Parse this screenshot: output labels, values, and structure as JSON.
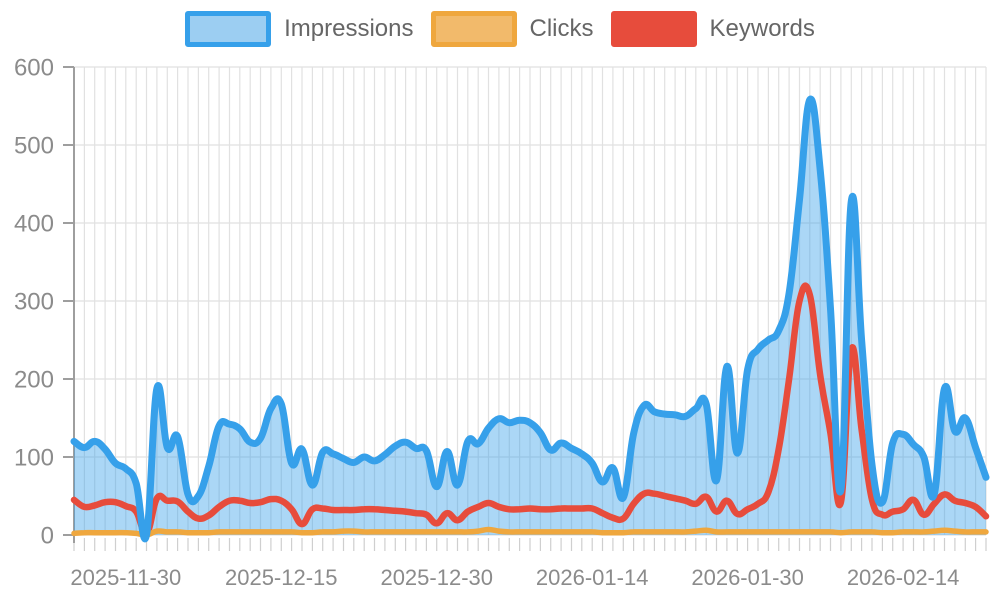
{
  "legend": {
    "items": [
      {
        "label": "Impressions",
        "fill": "#9CCEF2",
        "border": "#36A0EA"
      },
      {
        "label": "Clicks",
        "fill": "#F2BA6B",
        "border": "#EFA73E"
      },
      {
        "label": "Keywords",
        "fill": "#E74C3C",
        "border": "#E74C3C"
      }
    ]
  },
  "chart_data": {
    "type": "area",
    "title": "",
    "xlabel": "",
    "ylabel": "",
    "ylim": [
      0,
      600
    ],
    "y_ticks": [
      0,
      100,
      200,
      300,
      400,
      500,
      600
    ],
    "grid": true,
    "legend_position": "top",
    "n_points": 89,
    "x_tick_indices": [
      5,
      20,
      35,
      50,
      65,
      80
    ],
    "x_tick_labels": [
      "2025-11-30",
      "2025-12-15",
      "2025-12-30",
      "2026-01-14",
      "2026-01-30",
      "2026-02-14"
    ],
    "series": [
      {
        "name": "Impressions",
        "style": "area",
        "line_color": "#36A0EA",
        "fill_color": "rgba(54,160,234,0.42)",
        "line_width": 7,
        "values": [
          120,
          112,
          120,
          110,
          92,
          85,
          66,
          0,
          188,
          112,
          126,
          52,
          50,
          88,
          140,
          142,
          136,
          119,
          124,
          162,
          168,
          92,
          110,
          64,
          106,
          104,
          98,
          93,
          100,
          95,
          103,
          114,
          119,
          111,
          108,
          62,
          107,
          64,
          120,
          117,
          137,
          149,
          144,
          147,
          144,
          131,
          109,
          118,
          111,
          104,
          92,
          68,
          86,
          48,
          130,
          166,
          158,
          155,
          154,
          152,
          162,
          168,
          70,
          216,
          105,
          212,
          238,
          250,
          262,
          310,
          430,
          558,
          468,
          290,
          58,
          428,
          250,
          90,
          42,
          118,
          129,
          116,
          100,
          52,
          188,
          133,
          150,
          112,
          74
        ]
      },
      {
        "name": "Clicks",
        "style": "line",
        "line_color": "#EFA73E",
        "line_width": 5.5,
        "values": [
          2,
          3,
          3,
          3,
          3,
          3,
          2,
          0,
          5,
          4,
          4,
          3,
          3,
          3,
          4,
          4,
          4,
          4,
          4,
          4,
          4,
          4,
          3,
          3,
          4,
          4,
          5,
          5,
          4,
          4,
          4,
          4,
          4,
          4,
          4,
          4,
          4,
          4,
          4,
          5,
          7,
          5,
          4,
          4,
          4,
          4,
          4,
          4,
          4,
          4,
          4,
          3,
          3,
          3,
          4,
          4,
          4,
          4,
          4,
          4,
          5,
          6,
          4,
          4,
          4,
          4,
          4,
          4,
          4,
          4,
          4,
          4,
          4,
          4,
          3,
          4,
          4,
          4,
          3,
          3,
          4,
          4,
          4,
          5,
          6,
          5,
          4,
          4,
          4
        ]
      },
      {
        "name": "Keywords",
        "style": "line",
        "line_color": "#E74C3C",
        "line_width": 6.5,
        "values": [
          45,
          36,
          38,
          42,
          42,
          37,
          30,
          2,
          47,
          44,
          43,
          30,
          21,
          25,
          36,
          44,
          44,
          41,
          42,
          46,
          44,
          33,
          14,
          33,
          34,
          32,
          32,
          32,
          33,
          33,
          32,
          31,
          30,
          28,
          26,
          15,
          28,
          19,
          30,
          36,
          41,
          36,
          33,
          33,
          34,
          33,
          33,
          34,
          34,
          34,
          34,
          28,
          22,
          21,
          40,
          53,
          53,
          50,
          47,
          44,
          40,
          49,
          30,
          44,
          27,
          33,
          40,
          55,
          110,
          200,
          300,
          308,
          205,
          130,
          42,
          238,
          135,
          45,
          26,
          30,
          33,
          45,
          26,
          40,
          52,
          44,
          41,
          36,
          24
        ]
      }
    ],
    "colors": {
      "grid": "#e1e1e1",
      "minor_tick": "#cfcfcf",
      "axis_line": "#9e9e9e",
      "tick_text": "#8b8b8b"
    }
  }
}
